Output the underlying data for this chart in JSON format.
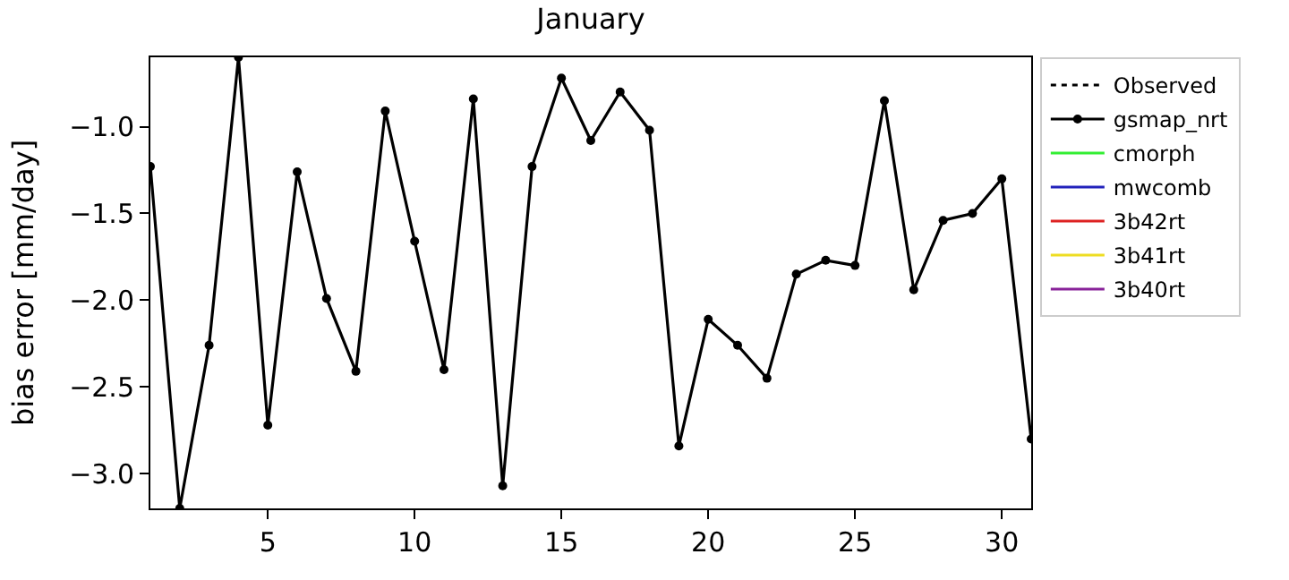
{
  "chart_data": {
    "type": "line",
    "title": "January",
    "ylabel": "bias error [mm/day]",
    "x": [
      1,
      2,
      3,
      4,
      5,
      6,
      7,
      8,
      9,
      10,
      11,
      12,
      13,
      14,
      15,
      16,
      17,
      18,
      19,
      20,
      21,
      22,
      23,
      24,
      25,
      26,
      27,
      28,
      29,
      30,
      31
    ],
    "series": [
      {
        "name": "Observed",
        "color": "#000000",
        "line_style": "dotted",
        "marker": "none",
        "values": [
          null,
          null,
          null,
          null,
          null,
          null,
          null,
          null,
          null,
          null,
          null,
          null,
          null,
          null,
          null,
          null,
          null,
          null,
          null,
          null,
          null,
          null,
          null,
          null,
          null,
          null,
          null,
          null,
          null,
          null,
          null
        ]
      },
      {
        "name": "gsmap_nrt",
        "color": "#000000",
        "line_style": "solid",
        "marker": "circle",
        "values": [
          -1.23,
          -3.2,
          -2.26,
          -0.6,
          -2.72,
          -1.26,
          -1.99,
          -2.41,
          -0.91,
          -1.66,
          -2.4,
          -0.84,
          -3.07,
          -1.23,
          -0.72,
          -1.08,
          -0.8,
          -1.02,
          -2.84,
          -2.11,
          -2.26,
          -2.45,
          -1.85,
          -1.77,
          -1.8,
          -0.85,
          -1.94,
          -1.54,
          -1.5,
          -1.3,
          -2.8
        ]
      },
      {
        "name": "cmorph",
        "color": "#33ee33",
        "line_style": "solid",
        "marker": "none",
        "values": [
          null,
          null,
          null,
          null,
          null,
          null,
          null,
          null,
          null,
          null,
          null,
          null,
          null,
          null,
          null,
          null,
          null,
          null,
          null,
          null,
          null,
          null,
          null,
          null,
          null,
          null,
          null,
          null,
          null,
          null,
          null
        ]
      },
      {
        "name": "mwcomb",
        "color": "#2222bb",
        "line_style": "solid",
        "marker": "none",
        "values": [
          null,
          null,
          null,
          null,
          null,
          null,
          null,
          null,
          null,
          null,
          null,
          null,
          null,
          null,
          null,
          null,
          null,
          null,
          null,
          null,
          null,
          null,
          null,
          null,
          null,
          null,
          null,
          null,
          null,
          null,
          null
        ]
      },
      {
        "name": "3b42rt",
        "color": "#dd2222",
        "line_style": "solid",
        "marker": "none",
        "values": [
          null,
          null,
          null,
          null,
          null,
          null,
          null,
          null,
          null,
          null,
          null,
          null,
          null,
          null,
          null,
          null,
          null,
          null,
          null,
          null,
          null,
          null,
          null,
          null,
          null,
          null,
          null,
          null,
          null,
          null,
          null
        ]
      },
      {
        "name": "3b41rt",
        "color": "#eedd22",
        "line_style": "solid",
        "marker": "none",
        "values": [
          null,
          null,
          null,
          null,
          null,
          null,
          null,
          null,
          null,
          null,
          null,
          null,
          null,
          null,
          null,
          null,
          null,
          null,
          null,
          null,
          null,
          null,
          null,
          null,
          null,
          null,
          null,
          null,
          null,
          null,
          null
        ]
      },
      {
        "name": "3b40rt",
        "color": "#882299",
        "line_style": "solid",
        "marker": "none",
        "values": [
          null,
          null,
          null,
          null,
          null,
          null,
          null,
          null,
          null,
          null,
          null,
          null,
          null,
          null,
          null,
          null,
          null,
          null,
          null,
          null,
          null,
          null,
          null,
          null,
          null,
          null,
          null,
          null,
          null,
          null,
          null
        ]
      }
    ],
    "xlim": [
      1,
      31
    ],
    "xticks": [
      5,
      10,
      15,
      20,
      25,
      30
    ],
    "ylim": [
      -3.2,
      -0.6
    ],
    "yticks": [
      {
        "value": -3.0,
        "label": "−3.0"
      },
      {
        "value": -2.5,
        "label": "−2.5"
      },
      {
        "value": -2.0,
        "label": "−2.0"
      },
      {
        "value": -1.5,
        "label": "−1.5"
      },
      {
        "value": -1.0,
        "label": "−1.0"
      }
    ],
    "legend": "top right"
  }
}
